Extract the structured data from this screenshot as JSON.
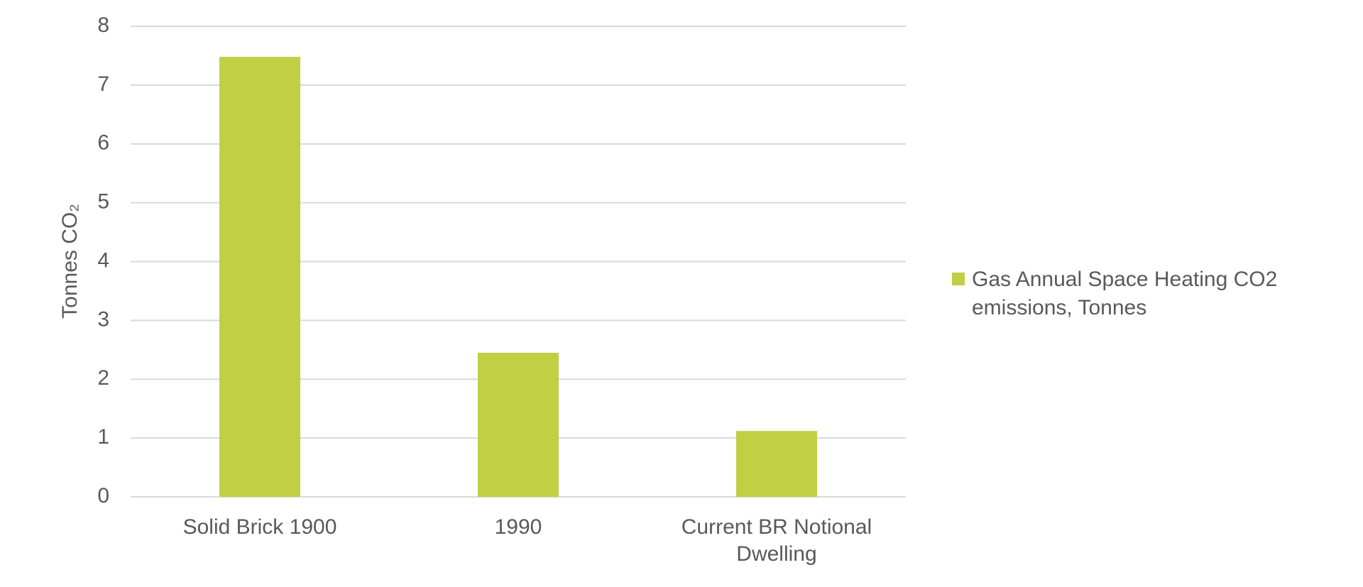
{
  "chart_data": {
    "type": "bar",
    "y_label": "Tonnes CO₂",
    "categories": [
      "Solid Brick 1900",
      "1990",
      "Current BR Notional Dwelling"
    ],
    "series": [
      {
        "name": "Gas Annual Space Heating CO2 emissions, Tonnes",
        "color": "#c1cf45",
        "values": [
          7.48,
          2.45,
          1.12
        ]
      }
    ],
    "ylim": [
      0,
      8
    ],
    "yticks": [
      0,
      1,
      2,
      3,
      4,
      5,
      6,
      7,
      8
    ],
    "grid": true,
    "legend": "right"
  }
}
